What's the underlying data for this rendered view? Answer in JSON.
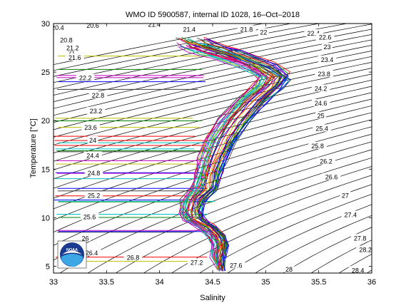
{
  "chart_data": {
    "type": "scatter",
    "title": "WMO ID 5900587, internal ID 1028, 16–Oct–2018",
    "xlabel": "Salinity",
    "ylabel": "Temperature [°C]",
    "xlim": [
      33,
      36
    ],
    "ylim": [
      4.3,
      30
    ],
    "xticks": [
      33,
      33.5,
      34,
      34.5,
      35,
      35.5,
      36
    ],
    "xtick_labels": [
      "33",
      "33.5",
      "34",
      "34.5",
      "35",
      "35.5",
      "36"
    ],
    "yticks": [
      5,
      10,
      15,
      20,
      25,
      30
    ],
    "ytick_labels": [
      "5",
      "10",
      "15",
      "20",
      "25",
      "30"
    ],
    "grid": false,
    "legend": "none",
    "logo_text": "NOAA",
    "density_contours": {
      "color": "#000000",
      "labels": [
        {
          "text": "20.4",
          "s": 33.04,
          "t": 29.5
        },
        {
          "text": "20.6",
          "s": 33.37,
          "t": 29.7
        },
        {
          "text": "20.8",
          "s": 33.12,
          "t": 28.2
        },
        {
          "text": "21",
          "s": 33.17,
          "t": 26.9
        },
        {
          "text": "21.2",
          "s": 33.18,
          "t": 27.4
        },
        {
          "text": "21.4",
          "s": 33.95,
          "t": 29.8
        },
        {
          "text": "21.4",
          "s": 34.28,
          "t": 29.3
        },
        {
          "text": "21.6",
          "s": 33.2,
          "t": 26.4
        },
        {
          "text": "21.8",
          "s": 34.82,
          "t": 29.3
        },
        {
          "text": "22",
          "s": 34.98,
          "t": 29.0
        },
        {
          "text": "22.2",
          "s": 33.3,
          "t": 24.3
        },
        {
          "text": "22.4",
          "s": 35.45,
          "t": 28.9
        },
        {
          "text": "22.6",
          "s": 35.56,
          "t": 28.5
        },
        {
          "text": "22.8",
          "s": 33.42,
          "t": 22.5
        },
        {
          "text": "23",
          "s": 35.58,
          "t": 27.5
        },
        {
          "text": "23.2",
          "s": 33.4,
          "t": 20.9
        },
        {
          "text": "23.4",
          "s": 35.58,
          "t": 26.2
        },
        {
          "text": "23.6",
          "s": 33.35,
          "t": 19.2
        },
        {
          "text": "23.8",
          "s": 35.55,
          "t": 24.7
        },
        {
          "text": "24",
          "s": 33.37,
          "t": 17.9
        },
        {
          "text": "24.2",
          "s": 35.52,
          "t": 23.2
        },
        {
          "text": "24.4",
          "s": 33.37,
          "t": 16.3
        },
        {
          "text": "24.6",
          "s": 35.52,
          "t": 21.7
        },
        {
          "text": "24.8",
          "s": 33.38,
          "t": 14.5
        },
        {
          "text": "25",
          "s": 35.52,
          "t": 20.4
        },
        {
          "text": "25.2",
          "s": 33.38,
          "t": 12.2
        },
        {
          "text": "25.4",
          "s": 35.53,
          "t": 19.1
        },
        {
          "text": "25.6",
          "s": 33.34,
          "t": 10.0
        },
        {
          "text": "25.8",
          "s": 35.49,
          "t": 17.3
        },
        {
          "text": "26",
          "s": 33.3,
          "t": 7.8
        },
        {
          "text": "26.2",
          "s": 35.57,
          "t": 15.7
        },
        {
          "text": "26.4",
          "s": 33.36,
          "t": 6.3
        },
        {
          "text": "26.6",
          "s": 35.62,
          "t": 14.1
        },
        {
          "text": "26.8",
          "s": 33.75,
          "t": 5.8
        },
        {
          "text": "27",
          "s": 35.75,
          "t": 12.2
        },
        {
          "text": "27.2",
          "s": 34.35,
          "t": 5.3
        },
        {
          "text": "27.4",
          "s": 35.8,
          "t": 10.2
        },
        {
          "text": "27.6",
          "s": 34.72,
          "t": 5.0
        },
        {
          "text": "27.8",
          "s": 35.89,
          "t": 7.8
        },
        {
          "text": "28",
          "s": 35.22,
          "t": 4.6
        },
        {
          "text": "28.2",
          "s": 35.94,
          "t": 6.6
        },
        {
          "text": "28.4",
          "s": 35.87,
          "t": 4.5
        }
      ]
    },
    "profiles": {
      "count": 40,
      "colors": [
        "#0000ff",
        "#008000",
        "#ff0000",
        "#00bfbf",
        "#bf00bf",
        "#bfbf00",
        "#404040"
      ],
      "mean_curve": [
        {
          "s": 34.58,
          "t": 4.6
        },
        {
          "s": 34.55,
          "t": 6.0
        },
        {
          "s": 34.57,
          "t": 7.3
        },
        {
          "s": 34.54,
          "t": 8.1
        },
        {
          "s": 34.45,
          "t": 9.0
        },
        {
          "s": 34.33,
          "t": 9.8
        },
        {
          "s": 34.29,
          "t": 10.6
        },
        {
          "s": 34.32,
          "t": 11.8
        },
        {
          "s": 34.42,
          "t": 13.0
        },
        {
          "s": 34.46,
          "t": 14.5
        },
        {
          "s": 34.5,
          "t": 16.0
        },
        {
          "s": 34.58,
          "t": 18.0
        },
        {
          "s": 34.7,
          "t": 20.0
        },
        {
          "s": 34.86,
          "t": 22.0
        },
        {
          "s": 35.02,
          "t": 23.5
        },
        {
          "s": 35.08,
          "t": 24.5
        },
        {
          "s": 34.95,
          "t": 25.5
        },
        {
          "s": 34.78,
          "t": 26.2
        },
        {
          "s": 34.62,
          "t": 26.8
        },
        {
          "s": 34.5,
          "t": 27.2
        },
        {
          "s": 34.38,
          "t": 27.6
        },
        {
          "s": 34.3,
          "t": 28.0
        }
      ]
    }
  }
}
